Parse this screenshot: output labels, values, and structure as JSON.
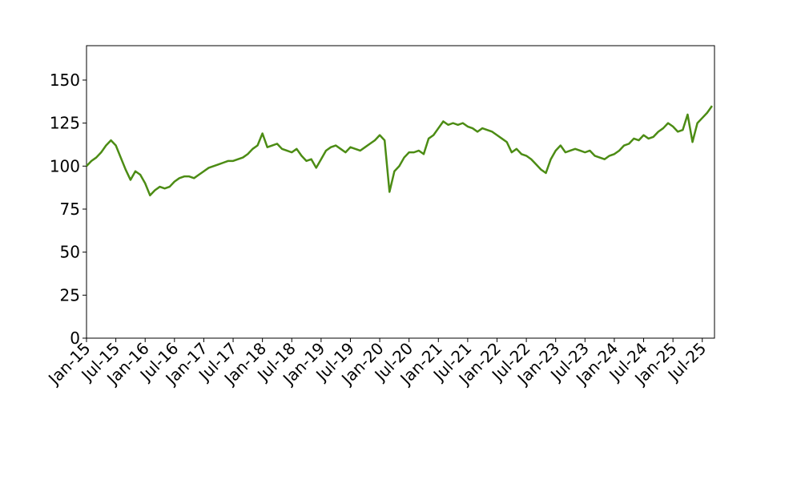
{
  "chart_data": {
    "type": "line",
    "x": [
      "2015-01",
      "2015-02",
      "2015-03",
      "2015-04",
      "2015-05",
      "2015-06",
      "2015-07",
      "2015-08",
      "2015-09",
      "2015-10",
      "2015-11",
      "2015-12",
      "2016-01",
      "2016-02",
      "2016-03",
      "2016-04",
      "2016-05",
      "2016-06",
      "2016-07",
      "2016-08",
      "2016-09",
      "2016-10",
      "2016-11",
      "2016-12",
      "2017-01",
      "2017-02",
      "2017-03",
      "2017-04",
      "2017-05",
      "2017-06",
      "2017-07",
      "2017-08",
      "2017-09",
      "2017-10",
      "2017-11",
      "2017-12",
      "2018-01",
      "2018-02",
      "2018-03",
      "2018-04",
      "2018-05",
      "2018-06",
      "2018-07",
      "2018-08",
      "2018-09",
      "2018-10",
      "2018-11",
      "2018-12",
      "2019-01",
      "2019-02",
      "2019-03",
      "2019-04",
      "2019-05",
      "2019-06",
      "2019-07",
      "2019-08",
      "2019-09",
      "2019-10",
      "2019-11",
      "2019-12",
      "2020-01",
      "2020-02",
      "2020-03",
      "2020-04",
      "2020-05",
      "2020-06",
      "2020-07",
      "2020-08",
      "2020-09",
      "2020-10",
      "2020-11",
      "2020-12",
      "2021-01",
      "2021-02",
      "2021-03",
      "2021-04",
      "2021-05",
      "2021-06",
      "2021-07",
      "2021-08",
      "2021-09",
      "2021-10",
      "2021-11",
      "2021-12",
      "2022-01",
      "2022-02",
      "2022-03",
      "2022-04",
      "2022-05",
      "2022-06",
      "2022-07",
      "2022-08",
      "2022-09",
      "2022-10",
      "2022-11",
      "2022-12",
      "2023-01",
      "2023-02",
      "2023-03",
      "2023-04",
      "2023-05",
      "2023-06",
      "2023-07",
      "2023-08",
      "2023-09",
      "2023-10",
      "2023-11",
      "2023-12",
      "2024-01",
      "2024-02",
      "2024-03",
      "2024-04",
      "2024-05",
      "2024-06",
      "2024-07",
      "2024-08",
      "2024-09",
      "2024-10",
      "2024-11",
      "2024-12",
      "2025-01",
      "2025-02",
      "2025-03",
      "2025-04",
      "2025-05",
      "2025-06",
      "2025-07",
      "2025-08",
      "2025-09"
    ],
    "series": [
      {
        "color": "#4c8c14",
        "values": [
          100,
          103,
          105,
          108,
          112,
          115,
          112,
          105,
          98,
          92,
          97,
          95,
          90,
          83,
          86,
          88,
          87,
          88,
          91,
          93,
          94,
          94,
          93,
          95,
          97,
          99,
          100,
          101,
          102,
          103,
          103,
          104,
          105,
          107,
          110,
          112,
          119,
          111,
          112,
          113,
          110,
          109,
          108,
          110,
          106,
          103,
          104,
          99,
          104,
          109,
          111,
          112,
          110,
          108,
          111,
          110,
          109,
          111,
          113,
          115,
          118,
          115,
          85,
          97,
          100,
          105,
          108,
          108,
          109,
          107,
          116,
          118,
          122,
          126,
          124,
          125,
          124,
          125,
          123,
          122,
          120,
          122,
          121,
          120,
          118,
          116,
          114,
          108,
          110,
          107,
          106,
          104,
          101,
          98,
          96,
          104,
          109,
          112,
          108,
          109,
          110,
          109,
          108,
          109,
          106,
          105,
          104,
          106,
          107,
          109,
          112,
          113,
          116,
          115,
          118,
          116,
          117,
          120,
          122,
          125,
          123,
          120,
          121,
          130,
          114,
          125,
          128,
          131,
          135
        ]
      }
    ],
    "xlim": [
      "2015-01",
      "2025-09"
    ],
    "xticks": [
      {
        "value": "2015-01",
        "label": "Jan-15"
      },
      {
        "value": "2015-07",
        "label": "Jul-15"
      },
      {
        "value": "2016-01",
        "label": "Jan-16"
      },
      {
        "value": "2016-07",
        "label": "Jul-16"
      },
      {
        "value": "2017-01",
        "label": "Jan-17"
      },
      {
        "value": "2017-07",
        "label": "Jul-17"
      },
      {
        "value": "2018-01",
        "label": "Jan-18"
      },
      {
        "value": "2018-07",
        "label": "Jul-18"
      },
      {
        "value": "2019-01",
        "label": "Jan-19"
      },
      {
        "value": "2019-07",
        "label": "Jul-19"
      },
      {
        "value": "2020-01",
        "label": "Jan-20"
      },
      {
        "value": "2020-07",
        "label": "Jul-20"
      },
      {
        "value": "2021-01",
        "label": "Jan-21"
      },
      {
        "value": "2021-07",
        "label": "Jul-21"
      },
      {
        "value": "2022-01",
        "label": "Jan-22"
      },
      {
        "value": "2022-07",
        "label": "Jul-22"
      },
      {
        "value": "2023-01",
        "label": "Jan-23"
      },
      {
        "value": "2023-07",
        "label": "Jul-23"
      },
      {
        "value": "2024-01",
        "label": "Jan-24"
      },
      {
        "value": "2024-07",
        "label": "Jul-24"
      },
      {
        "value": "2025-01",
        "label": "Jan-25"
      },
      {
        "value": "2025-07",
        "label": "Jul-25"
      }
    ],
    "ylim": [
      0,
      170
    ],
    "yticks": [
      0,
      25,
      50,
      75,
      100,
      125,
      150
    ]
  }
}
